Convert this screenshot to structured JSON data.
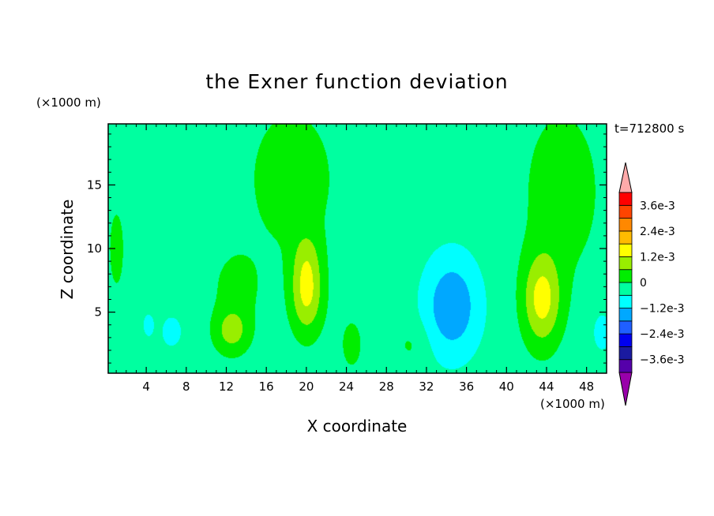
{
  "chart_data": {
    "type": "heatmap",
    "title": "the Exner function deviation",
    "xlabel": "X coordinate",
    "ylabel": "Z coordinate",
    "x_unit": "(×1000 m)",
    "y_unit": "(×1000 m)",
    "time_label": "t=712800 s",
    "xlim": [
      0.2,
      50
    ],
    "ylim": [
      0.2,
      19.8
    ],
    "x_ticks": [
      4,
      8,
      12,
      16,
      20,
      24,
      28,
      32,
      36,
      40,
      44,
      48
    ],
    "y_ticks": [
      5,
      10,
      15
    ],
    "levels": [
      -0.0042,
      -0.0036,
      -0.003,
      -0.0024,
      -0.0018,
      -0.0012,
      -0.0006,
      0,
      0.0006,
      0.0012,
      0.0018,
      0.0024,
      0.003,
      0.0036,
      0.0042
    ],
    "colorbar_labels": [
      "3.6e-3",
      "2.4e-3",
      "1.2e-3",
      "0",
      "−1.2e-3",
      "−2.4e-3",
      "−3.6e-3"
    ],
    "colorbar_label_values": [
      0.0036,
      0.0024,
      0.0012,
      0,
      -0.0012,
      -0.0024,
      -0.0036
    ],
    "colors": [
      "#9900aa",
      "#5500aa",
      "#1a1aa0",
      "#0000ee",
      "#1f5fff",
      "#00a8ff",
      "#00ffff",
      "#00ffa0",
      "#00ee00",
      "#99ee00",
      "#ffff00",
      "#ffbb00",
      "#ff8800",
      "#ff4400",
      "#ff0000",
      "#ffaaaa"
    ],
    "features": [
      {
        "x": 20,
        "z": 6.5,
        "sx": 1.6,
        "sz": 3.2,
        "amp": 0.0016
      },
      {
        "x": 20,
        "z": 9.5,
        "sx": 1.4,
        "sz": 2.2,
        "amp": 0.0005
      },
      {
        "x": 43.5,
        "z": 6.0,
        "sx": 1.9,
        "sz": 3.6,
        "amp": 0.0017
      },
      {
        "x": 12.5,
        "z": 3.5,
        "sx": 1.8,
        "sz": 1.8,
        "amp": 0.0011
      },
      {
        "x": 34.5,
        "z": 5.5,
        "sx": 2.8,
        "sz": 4.0,
        "amp": -0.0014
      },
      {
        "x": 6.5,
        "z": 3.5,
        "sx": 1.0,
        "sz": 1.2,
        "amp": -0.0007
      },
      {
        "x": 4.2,
        "z": 4.0,
        "sx": 0.6,
        "sz": 1.0,
        "amp": -0.0006
      },
      {
        "x": 18.5,
        "z": 15.5,
        "sx": 4.5,
        "sz": 6.0,
        "amp": 0.0006
      },
      {
        "x": 45.5,
        "z": 14.5,
        "sx": 4.0,
        "sz": 7.0,
        "amp": 0.0006
      },
      {
        "x": 13.0,
        "z": 7.0,
        "sx": 2.5,
        "sz": 3.0,
        "amp": 0.0005
      },
      {
        "x": 30.5,
        "z": 2.5,
        "sx": 1.8,
        "sz": 1.8,
        "amp": 0.0004
      },
      {
        "x": 24.5,
        "z": 2.5,
        "sx": 1.6,
        "sz": 3.0,
        "amp": 0.0004
      },
      {
        "x": 1.0,
        "z": 10.0,
        "sx": 1.2,
        "sz": 5.0,
        "amp": 0.0004
      },
      {
        "x": 8.0,
        "z": 16.0,
        "sx": 3.0,
        "sz": 3.0,
        "amp": -0.0003
      },
      {
        "x": 49.5,
        "z": 3.5,
        "sx": 1.2,
        "sz": 2.0,
        "amp": -0.0005
      }
    ],
    "background": -0.0003
  }
}
